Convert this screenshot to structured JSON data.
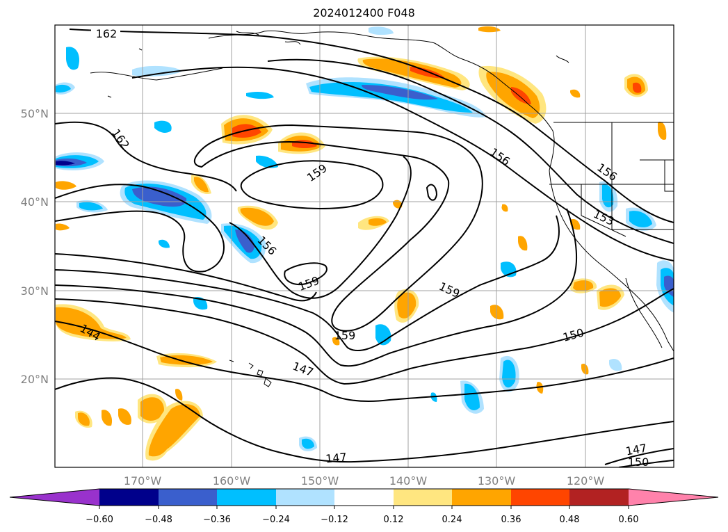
{
  "title": "2024012400 F048",
  "map": {
    "lat_labels": [
      "50°N",
      "40°N",
      "30°N",
      "20°N"
    ],
    "lon_labels": [
      "170°W",
      "160°W",
      "150°W",
      "140°W",
      "130°W",
      "120°W"
    ],
    "contour_labels": [
      "162",
      "162",
      "159",
      "156",
      "156",
      "159",
      "156",
      "159",
      "159",
      "153",
      "150",
      "144",
      "147",
      "147",
      "147",
      "150"
    ],
    "grid": true
  },
  "colorbar": {
    "ticks": [
      "−0.60",
      "−0.48",
      "−0.36",
      "−0.24",
      "−0.12",
      "0.12",
      "0.24",
      "0.36",
      "0.48",
      "0.60"
    ],
    "colors": [
      "#9932cc",
      "#00008b",
      "#3a5fcd",
      "#00bfff",
      "#b0e2ff",
      "#ffffff",
      "#ffe680",
      "#ffa500",
      "#ff4500",
      "#b22222",
      "#ff82ab"
    ]
  }
}
